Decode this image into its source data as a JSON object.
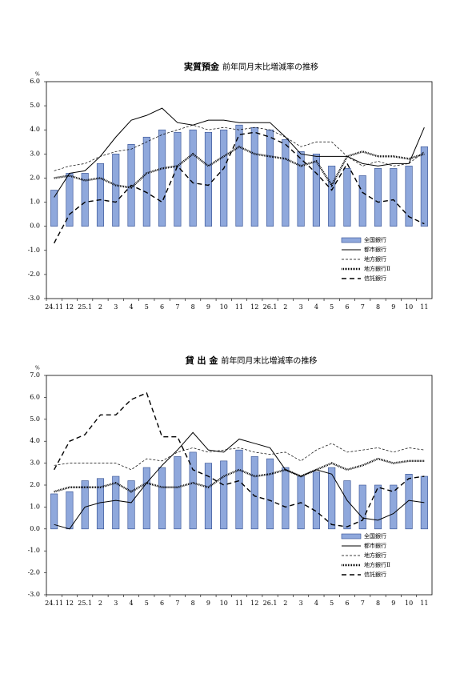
{
  "chart_data": [
    {
      "type": "bar-line",
      "title": "実質預金",
      "subtitle": "前年同月末比増減率の推移",
      "y_unit": "%",
      "categories": [
        "24.11",
        "12",
        "25.1",
        "2",
        "3",
        "4",
        "5",
        "6",
        "7",
        "8",
        "9",
        "10",
        "11",
        "12",
        "26.1",
        "2",
        "3",
        "4",
        "5",
        "6",
        "7",
        "8",
        "9",
        "10",
        "11"
      ],
      "ylim": [
        -3,
        6
      ],
      "yticks": [
        {
          "value": 6,
          "label": "6.0"
        },
        {
          "value": 5,
          "label": "5.0"
        },
        {
          "value": 4,
          "label": "4.0"
        },
        {
          "value": 3,
          "label": "3.0"
        },
        {
          "value": 2,
          "label": "2.0"
        },
        {
          "value": 1,
          "label": "1.0"
        },
        {
          "value": 0,
          "label": "0.0"
        },
        {
          "value": -1,
          "label": "-1.0"
        },
        {
          "value": -2,
          "label": "-2.0"
        },
        {
          "value": -3,
          "label": "-3.0"
        }
      ],
      "grid": false,
      "legend": "lower right",
      "series": [
        {
          "name": "全国銀行",
          "type": "bar",
          "color": "#8fa8dc",
          "values": [
            1.5,
            2.2,
            2.2,
            2.6,
            3.0,
            3.4,
            3.7,
            4.0,
            3.9,
            4.0,
            3.9,
            4.0,
            4.2,
            4.1,
            4.0,
            3.6,
            3.1,
            3.0,
            2.5,
            2.4,
            2.1,
            2.4,
            2.4,
            2.5,
            3.3
          ]
        },
        {
          "name": "都市銀行",
          "type": "line",
          "dash": "solid",
          "color": "#000000",
          "values": [
            1.2,
            2.2,
            2.3,
            2.9,
            3.7,
            4.4,
            4.6,
            4.9,
            4.3,
            4.2,
            4.4,
            4.4,
            4.3,
            4.3,
            4.3,
            3.7,
            3.0,
            2.9,
            2.9,
            2.9,
            2.6,
            2.5,
            2.6,
            2.6,
            4.1
          ]
        },
        {
          "name": "地方銀行",
          "type": "line",
          "dash": "dashed",
          "color": "#000000",
          "values": [
            2.3,
            2.5,
            2.6,
            2.9,
            3.1,
            3.2,
            3.5,
            3.8,
            4.0,
            4.2,
            4.0,
            4.1,
            4.0,
            4.1,
            4.0,
            3.7,
            3.3,
            3.5,
            3.5,
            2.9,
            2.5,
            2.7,
            2.5,
            2.6,
            3.1
          ]
        },
        {
          "name": "地方銀行Ⅱ",
          "type": "line",
          "dash": "dotted",
          "color": "#000000",
          "values": [
            2.0,
            2.1,
            1.9,
            2.0,
            1.7,
            1.6,
            2.2,
            2.4,
            2.5,
            3.0,
            2.5,
            2.9,
            3.3,
            3.0,
            2.9,
            2.8,
            2.5,
            2.7,
            1.7,
            2.9,
            3.1,
            2.9,
            2.9,
            2.8,
            3.0
          ]
        },
        {
          "name": "信託銀行",
          "type": "line",
          "dash": "long-dashed",
          "color": "#000000",
          "values": [
            -0.7,
            0.5,
            1.0,
            1.1,
            1.0,
            1.7,
            1.4,
            1.0,
            2.5,
            1.8,
            1.7,
            2.4,
            3.8,
            3.9,
            3.7,
            3.4,
            2.8,
            2.2,
            1.5,
            2.6,
            1.4,
            1.0,
            1.1,
            0.4,
            0.1
          ]
        }
      ]
    },
    {
      "type": "bar-line",
      "title": "貸 出 金",
      "subtitle": "前年同月末比増減率の推移",
      "y_unit": "%",
      "categories": [
        "24.11",
        "12",
        "25.1",
        "2",
        "3",
        "4",
        "5",
        "6",
        "7",
        "8",
        "9",
        "10",
        "11",
        "12",
        "26.1",
        "2",
        "3",
        "4",
        "5",
        "6",
        "7",
        "8",
        "9",
        "10",
        "11"
      ],
      "ylim": [
        -3,
        7
      ],
      "yticks": [
        {
          "value": 7,
          "label": "7.0"
        },
        {
          "value": 6,
          "label": "6.0"
        },
        {
          "value": 5,
          "label": "5.0"
        },
        {
          "value": 4,
          "label": "4.0"
        },
        {
          "value": 3,
          "label": "3.0"
        },
        {
          "value": 2,
          "label": "2.0"
        },
        {
          "value": 1,
          "label": "1.0"
        },
        {
          "value": 0,
          "label": "0.0"
        },
        {
          "value": -1,
          "label": "-1.0"
        },
        {
          "value": -2,
          "label": "-2.0"
        },
        {
          "value": -3,
          "label": "-3.0"
        }
      ],
      "grid": false,
      "legend": "lower right",
      "series": [
        {
          "name": "全国銀行",
          "type": "bar",
          "color": "#8fa8dc",
          "values": [
            1.6,
            1.7,
            2.2,
            2.3,
            2.4,
            2.2,
            2.8,
            2.8,
            3.3,
            3.5,
            3.0,
            3.1,
            3.6,
            3.3,
            3.2,
            2.8,
            2.4,
            2.6,
            2.8,
            2.2,
            2.0,
            2.0,
            2.0,
            2.5,
            2.4
          ]
        },
        {
          "name": "都市銀行",
          "type": "line",
          "dash": "solid",
          "color": "#000000",
          "values": [
            0.2,
            0.0,
            1.0,
            1.2,
            1.3,
            1.2,
            2.1,
            2.9,
            3.6,
            4.4,
            3.6,
            3.5,
            4.1,
            3.9,
            3.7,
            2.7,
            2.4,
            2.7,
            2.5,
            1.3,
            0.5,
            0.4,
            0.7,
            1.3,
            1.2
          ]
        },
        {
          "name": "地方銀行",
          "type": "line",
          "dash": "dashed",
          "color": "#000000",
          "values": [
            2.9,
            3.0,
            3.0,
            3.0,
            3.0,
            2.7,
            3.2,
            3.1,
            3.5,
            3.7,
            3.5,
            3.6,
            3.7,
            3.5,
            3.4,
            3.5,
            3.1,
            3.6,
            3.9,
            3.5,
            3.6,
            3.7,
            3.5,
            3.7,
            3.6
          ]
        },
        {
          "name": "地方銀行Ⅱ",
          "type": "line",
          "dash": "dotted",
          "color": "#000000",
          "values": [
            1.7,
            1.9,
            1.9,
            1.9,
            2.1,
            1.7,
            2.1,
            1.9,
            1.9,
            2.1,
            1.9,
            2.4,
            2.7,
            2.4,
            2.5,
            2.7,
            2.4,
            2.7,
            3.0,
            2.7,
            2.9,
            3.2,
            3.0,
            3.1,
            3.1
          ]
        },
        {
          "name": "信託銀行",
          "type": "line",
          "dash": "long-dashed",
          "color": "#000000",
          "values": [
            2.7,
            4.0,
            4.3,
            5.2,
            5.2,
            5.9,
            6.2,
            4.2,
            4.2,
            2.7,
            2.4,
            2.0,
            2.2,
            1.5,
            1.3,
            1.0,
            1.2,
            0.8,
            0.2,
            0.1,
            0.4,
            1.9,
            1.7,
            2.3,
            2.4
          ]
        }
      ]
    }
  ]
}
